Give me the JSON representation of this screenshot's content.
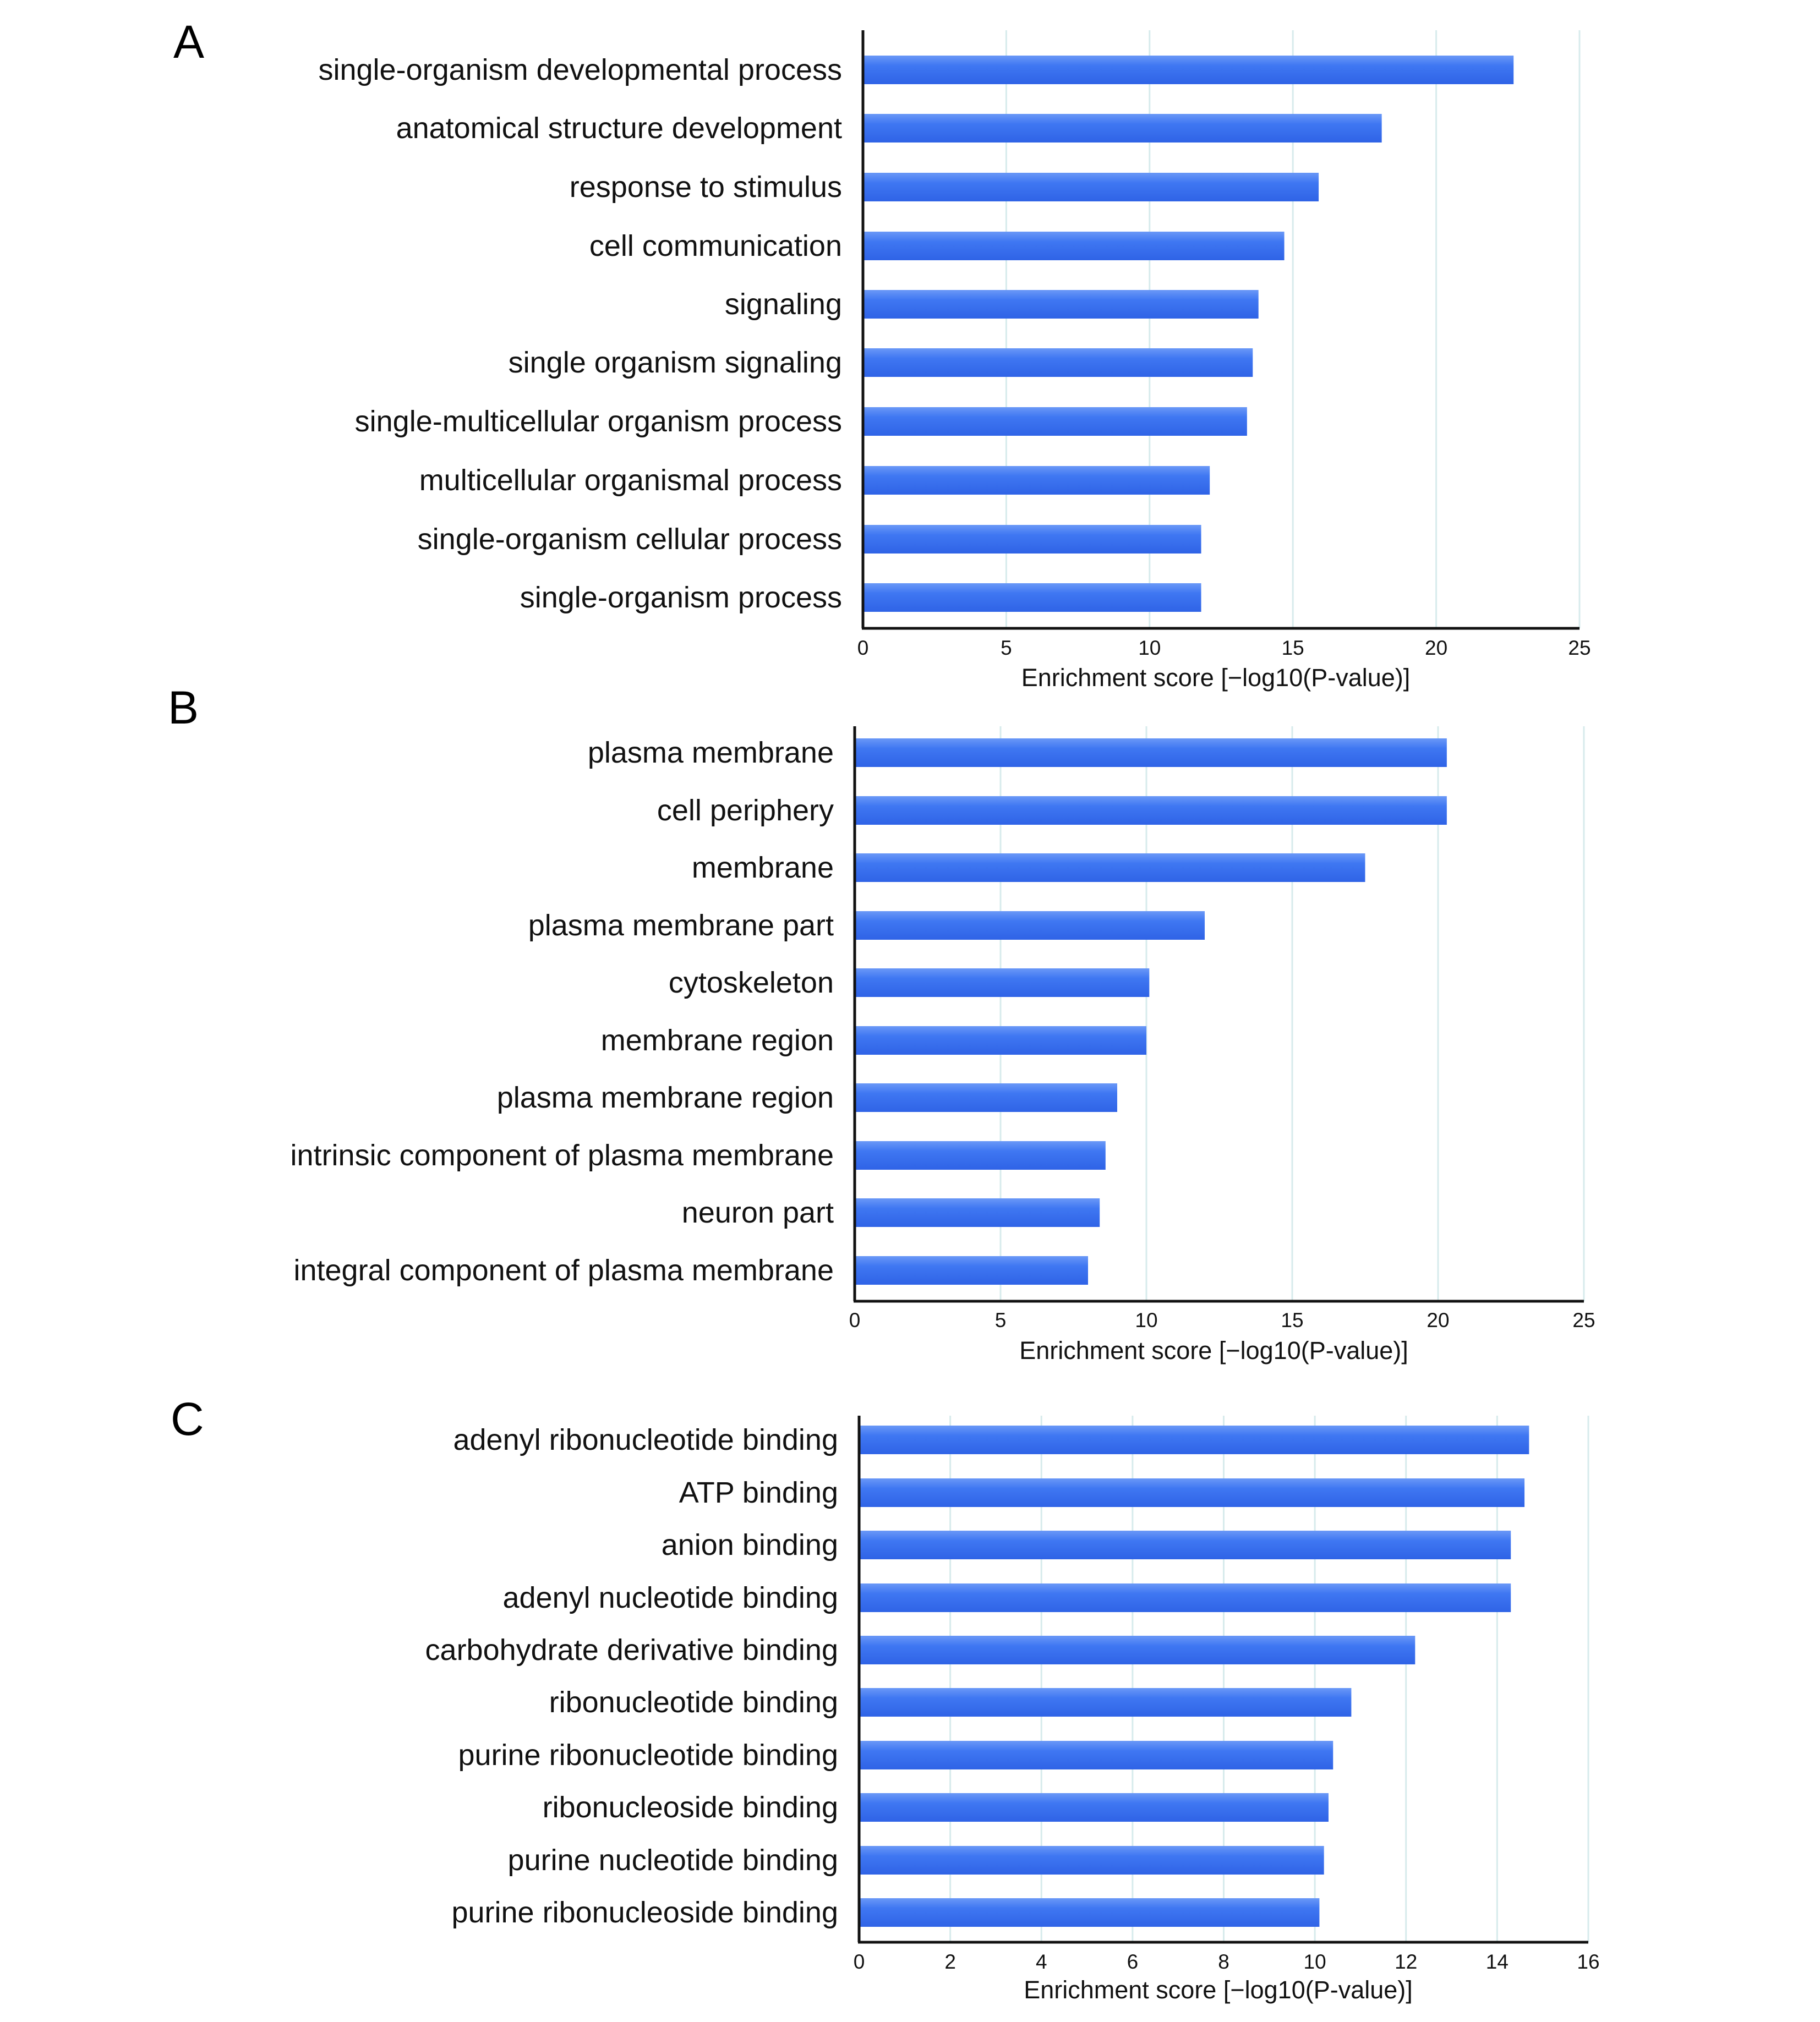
{
  "colors": {
    "bar": "#3a72f0",
    "bar_highlight": "#6a98f7",
    "grid": "#d7ebec",
    "axis": "#111111"
  },
  "chart_data": [
    {
      "panel": "A",
      "type": "bar",
      "orientation": "horizontal",
      "categories": [
        "single-organism developmental process",
        "anatomical structure development",
        "response to stimulus",
        "cell communication",
        "signaling",
        "single organism signaling",
        "single-multicellular organism process",
        "multicellular organismal process",
        "single-organism cellular process",
        "single-organism process"
      ],
      "values": [
        22.7,
        18.1,
        15.9,
        14.7,
        13.8,
        13.6,
        13.4,
        12.1,
        11.8,
        11.8
      ],
      "xlabel": "Enrichment score [−log10(P-value)]",
      "xlim": [
        0,
        25
      ],
      "xticks": [
        "0",
        "5",
        "10",
        "15",
        "20",
        "25"
      ],
      "grid": true
    },
    {
      "panel": "B",
      "type": "bar",
      "orientation": "horizontal",
      "categories": [
        "plasma membrane",
        "cell periphery",
        "membrane",
        "plasma membrane part",
        "cytoskeleton",
        "membrane region",
        "plasma membrane region",
        "intrinsic component of plasma membrane",
        "neuron part",
        "integral component of plasma membrane"
      ],
      "values": [
        20.3,
        20.3,
        17.5,
        12.0,
        10.1,
        10.0,
        9.0,
        8.6,
        8.4,
        8.0
      ],
      "xlabel": "Enrichment score [−log10(P-value)]",
      "xlim": [
        0,
        25
      ],
      "xticks": [
        "0",
        "5",
        "10",
        "15",
        "20",
        "25"
      ],
      "grid": true
    },
    {
      "panel": "C",
      "type": "bar",
      "orientation": "horizontal",
      "categories": [
        "adenyl ribonucleotide binding",
        "ATP binding",
        "anion binding",
        "adenyl nucleotide binding",
        "carbohydrate derivative binding",
        "ribonucleotide binding",
        "purine ribonucleotide binding",
        "ribonucleoside binding",
        "purine nucleotide binding",
        "purine ribonucleoside binding"
      ],
      "values": [
        14.7,
        14.6,
        14.3,
        14.3,
        12.2,
        10.8,
        10.4,
        10.3,
        10.2,
        10.1
      ],
      "xlabel": "Enrichment score [−log10(P-value)]",
      "xlim": [
        0,
        16
      ],
      "xticks": [
        "0",
        "2",
        "4",
        "6",
        "8",
        "10",
        "12",
        "14",
        "16"
      ],
      "grid": true
    }
  ]
}
